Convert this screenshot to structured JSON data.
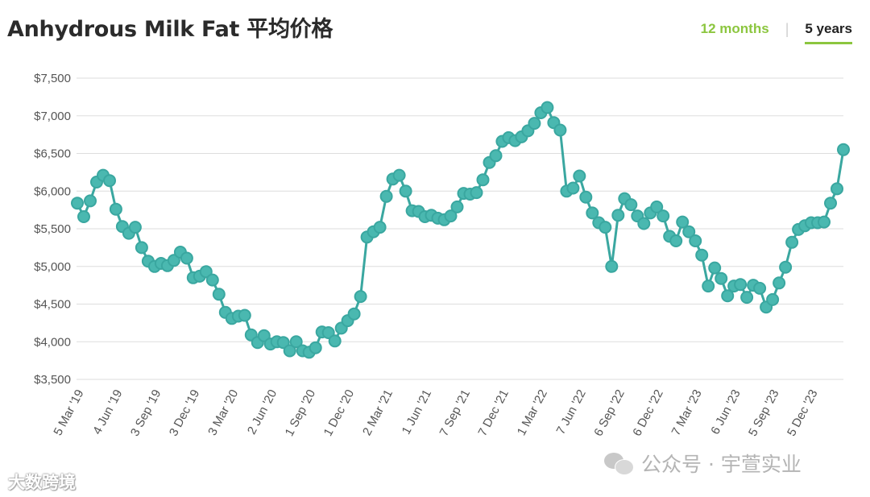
{
  "header": {
    "title": "Anhydrous Milk Fat 平均价格",
    "tabs": [
      {
        "label": "12 months",
        "active": false
      },
      {
        "label": "5 years",
        "active": true
      }
    ]
  },
  "watermarks": {
    "left": "大数跨境",
    "right": "公众号 · 宇萱实业"
  },
  "colors": {
    "line": "#3aa7a0",
    "marker_fill": "#4ab8b0",
    "grid": "#dddddd",
    "tab_active_accent": "#8cc63f"
  },
  "chart_data": {
    "type": "line",
    "title": "Anhydrous Milk Fat 平均价格",
    "xlabel": "",
    "ylabel": "",
    "ylim": [
      3500,
      7500
    ],
    "yticks": [
      3500,
      4000,
      4500,
      5000,
      5500,
      6000,
      6500,
      7000,
      7500
    ],
    "ytick_labels": [
      "$3,500",
      "$4,000",
      "$4,500",
      "$5,000",
      "$5,500",
      "$6,000",
      "$6,500",
      "$7,000",
      "$7,500"
    ],
    "grid": true,
    "xtick_labels": [
      {
        "label": "5 Mar '19",
        "index": 0
      },
      {
        "label": "4 Jun '19",
        "index": 6
      },
      {
        "label": "3 Sep '19",
        "index": 12
      },
      {
        "label": "3 Dec '19",
        "index": 18
      },
      {
        "label": "3 Mar '20",
        "index": 24
      },
      {
        "label": "2 Jun '20",
        "index": 30
      },
      {
        "label": "1 Sep '20",
        "index": 36
      },
      {
        "label": "1 Dec '20",
        "index": 42
      },
      {
        "label": "2 Mar '21",
        "index": 48
      },
      {
        "label": "1 Jun '21",
        "index": 54
      },
      {
        "label": "7 Sep '21",
        "index": 60
      },
      {
        "label": "7 Dec '21",
        "index": 66
      },
      {
        "label": "1 Mar '22",
        "index": 72
      },
      {
        "label": "7 Jun '22",
        "index": 78
      },
      {
        "label": "6 Sep '22",
        "index": 84
      },
      {
        "label": "6 Dec '22",
        "index": 90
      },
      {
        "label": "7 Mar '23",
        "index": 96
      },
      {
        "label": "6 Jun '23",
        "index": 102
      },
      {
        "label": "5 Sep '23",
        "index": 108
      },
      {
        "label": "5 Dec '23",
        "index": 114
      }
    ],
    "series": [
      {
        "values": [
          5840,
          5660,
          5870,
          6120,
          6210,
          6140,
          5760,
          5530,
          5440,
          5520,
          5250,
          5070,
          5000,
          5040,
          5010,
          5080,
          5190,
          5110,
          4850,
          4870,
          4930,
          4820,
          4630,
          4390,
          4310,
          4340,
          4350,
          4090,
          3990,
          4080,
          3970,
          4000,
          3990,
          3880,
          4000,
          3880,
          3860,
          3920,
          4130,
          4120,
          4010,
          4180,
          4280,
          4370,
          4600,
          5390,
          5460,
          5520,
          5930,
          6160,
          6210,
          6000,
          5740,
          5730,
          5660,
          5680,
          5640,
          5620,
          5670,
          5790,
          5970,
          5960,
          5980,
          6150,
          6380,
          6470,
          6660,
          6710,
          6670,
          6720,
          6800,
          6900,
          7040,
          7110,
          6910,
          6810,
          6000,
          6040,
          6200,
          5920,
          5710,
          5580,
          5520,
          5000,
          5680,
          5900,
          5820,
          5670,
          5570,
          5710,
          5790,
          5670,
          5400,
          5340,
          5590,
          5460,
          5340,
          5150,
          4740,
          4980,
          4840,
          4610,
          4740,
          4760,
          4590,
          4750,
          4710,
          4460,
          4560,
          4780,
          4990,
          5320,
          5490,
          5540,
          5580,
          5580,
          5590,
          5840,
          6030,
          6550
        ]
      }
    ]
  }
}
